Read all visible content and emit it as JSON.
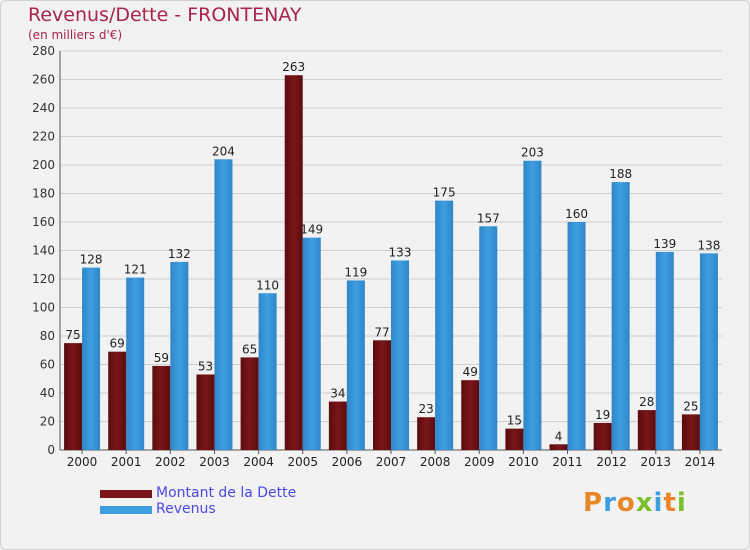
{
  "title": "Revenus/Dette - FRONTENAY",
  "subtitle": "(en milliers d'€)",
  "logo": "Proxiti",
  "colors": {
    "title": "#a8244a",
    "debt": "#7a1519",
    "revenue": "#3e9fe0",
    "legend_text": "#4a4ae0",
    "grid": "#cfcfcf"
  },
  "legend": [
    {
      "label": "Montant de la Dette",
      "color": "#7a1519"
    },
    {
      "label": "Revenus",
      "color": "#3e9fe0"
    }
  ],
  "chart_data": {
    "type": "bar",
    "categories": [
      "2000",
      "2001",
      "2002",
      "2003",
      "2004",
      "2005",
      "2006",
      "2007",
      "2008",
      "2009",
      "2010",
      "2011",
      "2012",
      "2013",
      "2014"
    ],
    "series": [
      {
        "name": "Montant de la Dette",
        "values": [
          75,
          69,
          59,
          53,
          65,
          263,
          34,
          77,
          23,
          49,
          15,
          4,
          19,
          28,
          25
        ]
      },
      {
        "name": "Revenus",
        "values": [
          128,
          121,
          132,
          204,
          110,
          149,
          119,
          133,
          175,
          157,
          203,
          160,
          188,
          139,
          138
        ]
      }
    ],
    "ylim": [
      0,
      280
    ],
    "yticks": [
      0,
      20,
      40,
      60,
      80,
      100,
      120,
      140,
      160,
      180,
      200,
      220,
      240,
      260,
      280
    ],
    "grid": true,
    "legend_position": "bottom-left"
  }
}
